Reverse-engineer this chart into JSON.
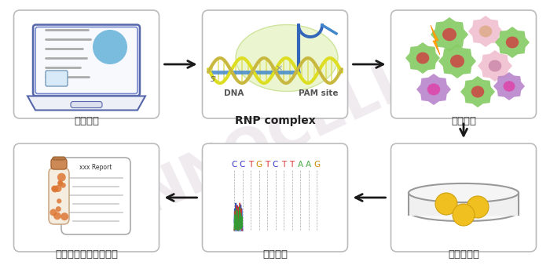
{
  "background_color": "#ffffff",
  "watermark_text": "NNOCELL",
  "watermark_color": "#c8b8c8",
  "watermark_alpha": 0.28,
  "box_edge_color": "#cccccc",
  "arrow_color": "#1a1a1a",
  "steps": [
    {
      "id": 0,
      "label": "设计方案",
      "row": 0,
      "col": 0
    },
    {
      "id": 1,
      "label": "RNP complex",
      "row": 0,
      "col": 1
    },
    {
      "id": 2,
      "label": "细胞转染",
      "row": 0,
      "col": 2
    },
    {
      "id": 3,
      "label": "单克隆形成",
      "row": 1,
      "col": 2
    },
    {
      "id": 4,
      "label": "测序验证",
      "row": 1,
      "col": 1
    },
    {
      "id": 5,
      "label": "质检冻存（提供报告）",
      "row": 1,
      "col": 0
    }
  ],
  "label_fontsize": 9.5
}
